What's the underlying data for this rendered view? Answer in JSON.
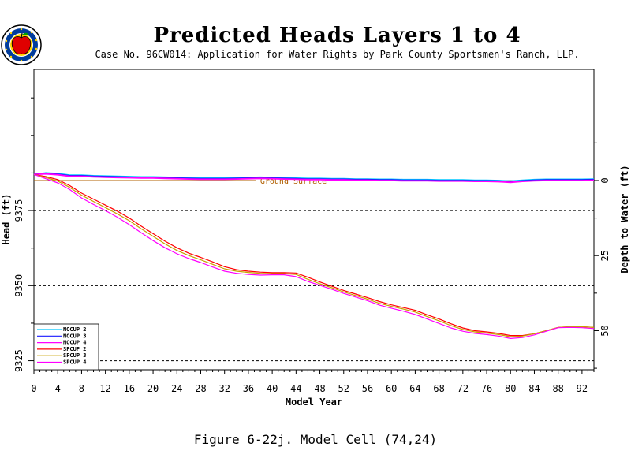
{
  "header": {
    "title": "Predicted Heads Layers 1 to 4",
    "subtitle": "Case No. 96CW014: Application for Water Rights by Park County Sportsmen's Ranch, LLP."
  },
  "caption": "Figure 6-22j.  Model Cell (74,24)",
  "colors": {
    "NOCUP 2": "#00c8ff",
    "NOCUP 3": "#1a1aff",
    "NOCUP 4": "#ff00ff",
    "SPCUP 2": "#ff0000",
    "SPCUP 3": "#c8a000",
    "SPCUP 4": "#ff00ff",
    "ground": "#b06000",
    "reference": "#000000"
  },
  "chart_data": {
    "type": "line",
    "xlabel": "Model Year",
    "ylabel": "Head (ft)",
    "y2label": "Depth to Water (ft)",
    "xlim": [
      0,
      94
    ],
    "ylim": [
      9322,
      9422
    ],
    "xticks": [
      0,
      4,
      8,
      12,
      16,
      20,
      24,
      28,
      32,
      36,
      40,
      44,
      48,
      52,
      56,
      60,
      64,
      68,
      72,
      76,
      80,
      84,
      88,
      92
    ],
    "yticks": [
      9325,
      9350,
      9375
    ],
    "y2_ticks": [
      0,
      25,
      50
    ],
    "ground_surface": {
      "label": "Ground Surface",
      "elevation": 9385
    },
    "reference_lines": [
      9325,
      9350,
      9375
    ],
    "legend": {
      "position": "bottom-left",
      "entries": [
        "NOCUP 2",
        "NOCUP 3",
        "NOCUP 4",
        "SPCUP 2",
        "SPCUP 3",
        "SPCUP 4"
      ]
    },
    "x": [
      0,
      2,
      4,
      6,
      8,
      10,
      12,
      14,
      16,
      18,
      20,
      22,
      24,
      26,
      28,
      30,
      32,
      34,
      36,
      38,
      40,
      42,
      44,
      46,
      48,
      50,
      52,
      54,
      56,
      58,
      60,
      62,
      64,
      66,
      68,
      70,
      72,
      74,
      76,
      78,
      80,
      82,
      84,
      86,
      88,
      90,
      92,
      94
    ],
    "series": [
      {
        "name": "NOCUP 2",
        "values": [
          9387,
          9387.5,
          9387.3,
          9386.8,
          9386.8,
          9386.6,
          9386.5,
          9386.4,
          9386.3,
          9386.2,
          9386.2,
          9386.1,
          9386.0,
          9385.9,
          9385.8,
          9385.8,
          9385.8,
          9385.9,
          9386.0,
          9386.1,
          9386.0,
          9385.9,
          9385.8,
          9385.7,
          9385.7,
          9385.6,
          9385.6,
          9385.5,
          9385.5,
          9385.4,
          9385.4,
          9385.3,
          9385.3,
          9385.3,
          9385.2,
          9385.2,
          9385.2,
          9385.1,
          9385.1,
          9385.0,
          9384.8,
          9385.1,
          9385.3,
          9385.4,
          9385.4,
          9385.4,
          9385.4,
          9385.5
        ]
      },
      {
        "name": "NOCUP 3",
        "values": [
          9387,
          9387.4,
          9387.1,
          9386.6,
          9386.6,
          9386.4,
          9386.3,
          9386.2,
          9386.1,
          9386.0,
          9386.0,
          9385.9,
          9385.8,
          9385.7,
          9385.6,
          9385.6,
          9385.6,
          9385.7,
          9385.8,
          9385.9,
          9385.8,
          9385.7,
          9385.6,
          9385.5,
          9385.5,
          9385.4,
          9385.4,
          9385.3,
          9385.3,
          9385.2,
          9385.2,
          9385.1,
          9385.1,
          9385.1,
          9385.0,
          9385.0,
          9385.0,
          9384.9,
          9384.9,
          9384.8,
          9384.6,
          9384.9,
          9385.1,
          9385.2,
          9385.2,
          9385.2,
          9385.2,
          9385.3
        ]
      },
      {
        "name": "NOCUP 4",
        "values": [
          9387,
          9387.2,
          9386.9,
          9386.4,
          9386.4,
          9386.2,
          9386.1,
          9386.0,
          9385.9,
          9385.8,
          9385.8,
          9385.7,
          9385.6,
          9385.5,
          9385.4,
          9385.4,
          9385.4,
          9385.5,
          9385.6,
          9385.7,
          9385.6,
          9385.5,
          9385.4,
          9385.3,
          9385.3,
          9385.2,
          9385.2,
          9385.1,
          9385.1,
          9385.0,
          9385.0,
          9384.9,
          9384.9,
          9384.9,
          9384.8,
          9384.8,
          9384.8,
          9384.7,
          9384.7,
          9384.6,
          9384.4,
          9384.7,
          9384.9,
          9385.0,
          9385.0,
          9385.0,
          9385.0,
          9385.1
        ]
      },
      {
        "name": "SPCUP 2",
        "values": [
          9387,
          9386.3,
          9385.3,
          9383.3,
          9380.8,
          9378.8,
          9376.8,
          9374.8,
          9372.5,
          9369.8,
          9367.3,
          9364.8,
          9362.6,
          9360.8,
          9359.4,
          9357.9,
          9356.3,
          9355.3,
          9354.8,
          9354.5,
          9354.3,
          9354.3,
          9354.2,
          9352.8,
          9351.2,
          9349.8,
          9348.4,
          9347.2,
          9346.0,
          9344.7,
          9343.6,
          9342.7,
          9341.8,
          9340.3,
          9338.9,
          9337.3,
          9335.9,
          9335.0,
          9334.6,
          9334.1,
          9333.4,
          9333.4,
          9334.0,
          9335.0,
          9336.1,
          9336.3,
          9336.3,
          9336.1
        ]
      },
      {
        "name": "SPCUP 3",
        "values": [
          9387,
          9386.0,
          9384.8,
          9382.7,
          9380.1,
          9378.0,
          9376.0,
          9373.9,
          9371.6,
          9368.9,
          9366.4,
          9363.9,
          9361.7,
          9360.0,
          9358.6,
          9357.1,
          9355.6,
          9354.8,
          9354.4,
          9354.1,
          9354.0,
          9354.0,
          9353.7,
          9352.1,
          9350.6,
          9349.3,
          9347.9,
          9346.7,
          9345.5,
          9344.1,
          9343.1,
          9342.2,
          9341.2,
          9339.7,
          9338.3,
          9336.7,
          9335.4,
          9334.6,
          9334.2,
          9333.7,
          9333.0,
          9333.2,
          9334.0,
          9335.0,
          9336.1,
          9336.3,
          9336.3,
          9336.1
        ]
      },
      {
        "name": "SPCUP 4",
        "values": [
          9387,
          9385.6,
          9384.2,
          9382.0,
          9379.2,
          9377.0,
          9375.0,
          9372.8,
          9370.3,
          9367.6,
          9365.0,
          9362.6,
          9360.6,
          9359.0,
          9357.7,
          9356.2,
          9354.8,
          9354.1,
          9353.7,
          9353.5,
          9353.6,
          9353.6,
          9353.0,
          9351.4,
          9350.1,
          9348.8,
          9347.4,
          9346.2,
          9345.0,
          9343.5,
          9342.5,
          9341.5,
          9340.4,
          9338.9,
          9337.4,
          9335.9,
          9334.8,
          9334.1,
          9333.7,
          9333.2,
          9332.4,
          9332.7,
          9333.6,
          9334.8,
          9336.0,
          9336.1,
          9336.0,
          9335.7
        ]
      }
    ]
  }
}
